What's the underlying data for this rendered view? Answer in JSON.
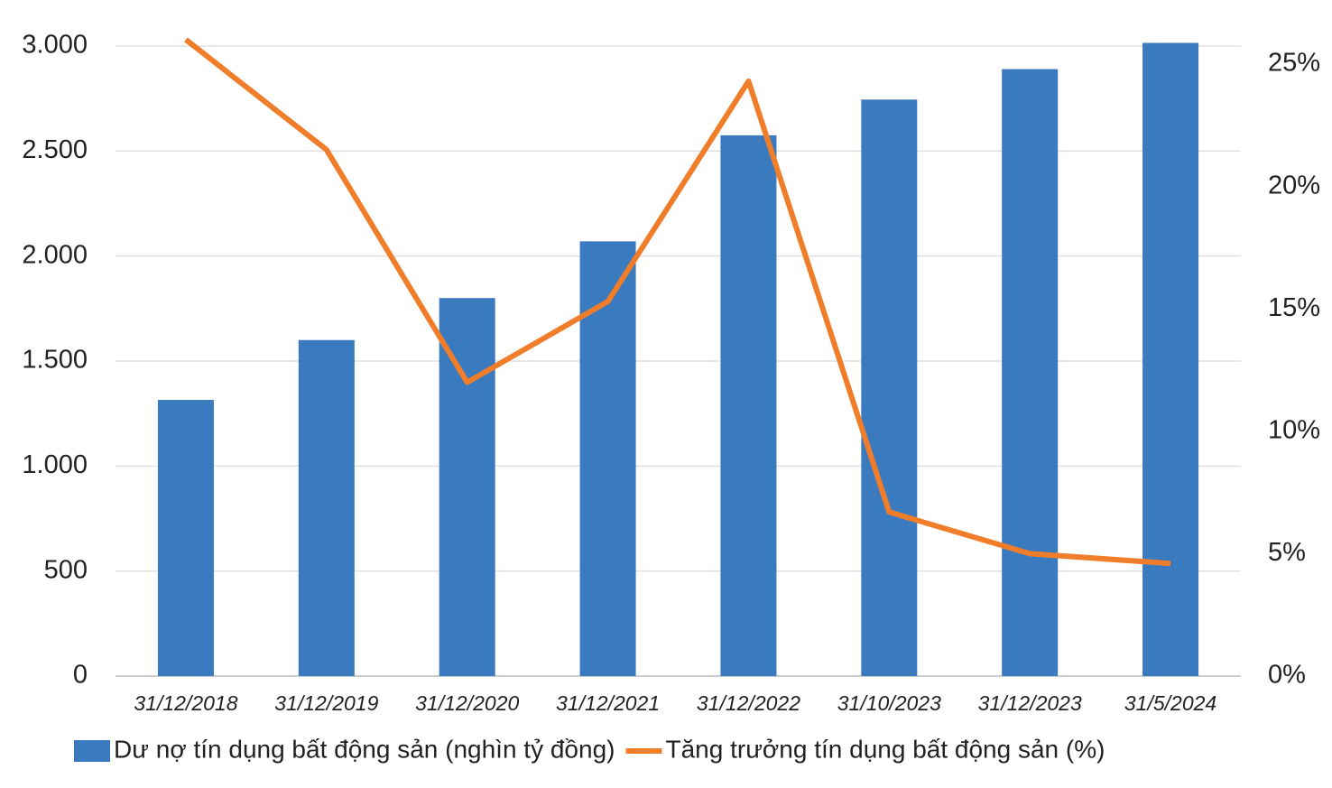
{
  "chart_data": {
    "type": "bar-line",
    "categories": [
      "31/12/2018",
      "31/12/2019",
      "31/12/2020",
      "31/12/2021",
      "31/12/2022",
      "31/10/2023",
      "31/12/2023",
      "31/5/2024"
    ],
    "series": [
      {
        "name": "Dư nợ tín dụng bất động sản (nghìn tỷ đồng)",
        "type": "bar",
        "color": "#3a7abf",
        "values": [
          1315,
          1600,
          1800,
          2070,
          2575,
          2745,
          2890,
          3015
        ]
      },
      {
        "name": "Tăng trưởng tín dụng bất động sản (%)",
        "type": "line",
        "axis": "y2",
        "color": "#f07d2a",
        "values": [
          26.0,
          21.5,
          12.0,
          15.3,
          24.3,
          6.7,
          5.0,
          4.6
        ]
      }
    ],
    "ylim": [
      0,
      3000
    ],
    "yticks": [
      0,
      500,
      {
        "value": 1000,
        "label": "1.000"
      },
      {
        "value": 1500,
        "label": "1.500"
      },
      {
        "value": 2000,
        "label": "2.000"
      },
      {
        "value": 2500,
        "label": "2.500"
      },
      {
        "value": 3000,
        "label": "3.000"
      }
    ],
    "y2lim": [
      0,
      25
    ],
    "y2ticks": [
      {
        "value": 0,
        "label": "0%"
      },
      {
        "value": 5,
        "label": "5%"
      },
      {
        "value": 10,
        "label": "10%"
      },
      {
        "value": 15,
        "label": "15%"
      },
      {
        "value": 20,
        "label": "20%"
      },
      {
        "value": 25,
        "label": "25%"
      }
    ],
    "grid": true,
    "legend": "bottom"
  }
}
